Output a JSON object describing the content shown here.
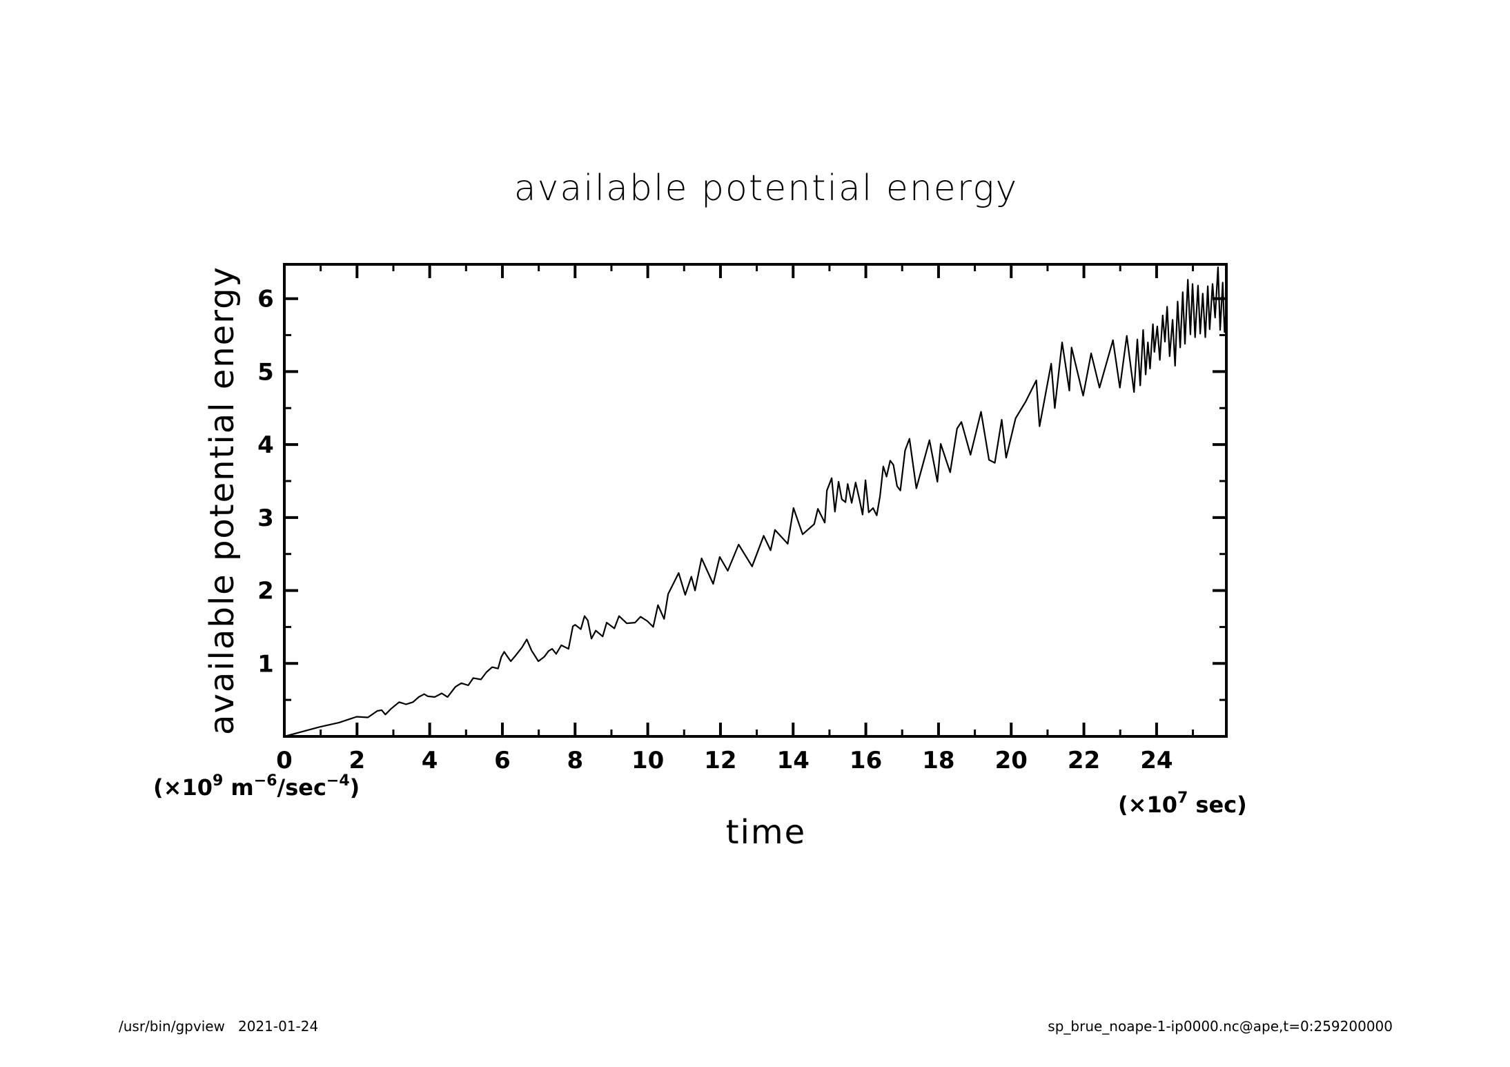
{
  "chart_data": {
    "type": "line",
    "title": "available potential energy",
    "xlabel": "time",
    "ylabel": "available potential energy",
    "x_unit_label": "(×10",
    "x_unit_exp": "7",
    "x_unit_suffix": " sec)",
    "y_unit_label": "(×10",
    "y_unit_exp": "9",
    "y_unit_suffix": " m",
    "y_unit_m_exp": "−6",
    "y_unit_sec": "/sec",
    "y_unit_sec_exp": "−4",
    "y_unit_close": ")",
    "xlim": [
      0,
      25.92
    ],
    "ylim": [
      0,
      6.47
    ],
    "xticks_major": [
      0,
      2,
      4,
      6,
      8,
      10,
      12,
      14,
      16,
      18,
      20,
      22,
      24
    ],
    "xticks_minor": [
      1,
      3,
      5,
      7,
      9,
      11,
      13,
      15,
      17,
      19,
      21,
      23,
      25
    ],
    "xtick_labels": [
      "0",
      "2",
      "4",
      "6",
      "8",
      "10",
      "12",
      "14",
      "16",
      "18",
      "20",
      "22",
      "24"
    ],
    "yticks_major": [
      1,
      2,
      3,
      4,
      5,
      6
    ],
    "yticks_minor": [
      0.5,
      1.5,
      2.5,
      3.5,
      4.5,
      5.5
    ],
    "ytick_labels": [
      "1",
      "2",
      "3",
      "4",
      "5",
      "6"
    ],
    "grid": false,
    "legend": "none",
    "series": [
      {
        "name": "available potential energy",
        "color": "#000000",
        "x": [
          0,
          0.15,
          0.97,
          1.51,
          1.99,
          2.3,
          2.56,
          2.68,
          2.78,
          2.94,
          3.16,
          3.35,
          3.54,
          3.7,
          3.85,
          3.95,
          4.14,
          4.33,
          4.49,
          4.71,
          4.87,
          5.06,
          5.2,
          5.41,
          5.56,
          5.72,
          5.88,
          5.97,
          6.05,
          6.13,
          6.23,
          6.35,
          6.54,
          6.67,
          6.8,
          6.99,
          7.15,
          7.27,
          7.37,
          7.48,
          7.62,
          7.82,
          7.94,
          8.0,
          8.16,
          8.26,
          8.35,
          8.45,
          8.57,
          8.76,
          8.87,
          9.08,
          9.21,
          9.42,
          9.65,
          9.8,
          9.99,
          10.15,
          10.28,
          10.45,
          10.56,
          10.85,
          11.03,
          11.2,
          11.3,
          11.48,
          11.8,
          11.98,
          12.2,
          12.5,
          12.87,
          13.19,
          13.38,
          13.5,
          13.85,
          14.01,
          14.26,
          14.58,
          14.68,
          14.87,
          14.93,
          15.06,
          15.15,
          15.25,
          15.34,
          15.44,
          15.5,
          15.61,
          15.72,
          15.82,
          15.91,
          15.99,
          16.08,
          16.2,
          16.3,
          16.39,
          16.48,
          16.57,
          16.67,
          16.76,
          16.86,
          16.95,
          17.08,
          17.2,
          17.39,
          17.75,
          17.97,
          18.06,
          18.32,
          18.51,
          18.63,
          18.88,
          19.17,
          19.39,
          19.55,
          19.74,
          19.86,
          20.12,
          20.4,
          20.69,
          20.78,
          21.1,
          21.2,
          21.4,
          21.6,
          21.66,
          21.98,
          22.2,
          22.43,
          22.8,
          22.99,
          23.18,
          23.38,
          23.47,
          23.55,
          23.63,
          23.7,
          23.76,
          23.82,
          23.9,
          23.94,
          24.02,
          24.09,
          24.17,
          24.23,
          24.29,
          24.36,
          24.44,
          24.51,
          24.58,
          24.65,
          24.72,
          24.78,
          24.86,
          24.93,
          24.99,
          25.06,
          25.14,
          25.2,
          25.27,
          25.34,
          25.41,
          25.46,
          25.54,
          25.61,
          25.69,
          25.75,
          25.82,
          25.87,
          25.92
        ],
        "y": [
          0,
          0.02,
          0.13,
          0.19,
          0.27,
          0.26,
          0.35,
          0.36,
          0.3,
          0.38,
          0.47,
          0.44,
          0.47,
          0.54,
          0.58,
          0.55,
          0.54,
          0.59,
          0.54,
          0.68,
          0.73,
          0.7,
          0.8,
          0.78,
          0.88,
          0.95,
          0.93,
          1.09,
          1.16,
          1.1,
          1.03,
          1.1,
          1.22,
          1.33,
          1.18,
          1.03,
          1.09,
          1.17,
          1.2,
          1.13,
          1.25,
          1.2,
          1.51,
          1.53,
          1.47,
          1.65,
          1.59,
          1.34,
          1.45,
          1.37,
          1.56,
          1.48,
          1.65,
          1.55,
          1.56,
          1.64,
          1.58,
          1.5,
          1.8,
          1.61,
          1.95,
          2.24,
          1.94,
          2.19,
          2.0,
          2.44,
          2.09,
          2.46,
          2.27,
          2.63,
          2.33,
          2.75,
          2.55,
          2.83,
          2.64,
          3.13,
          2.77,
          2.91,
          3.12,
          2.93,
          3.37,
          3.54,
          3.08,
          3.49,
          3.25,
          3.21,
          3.46,
          3.2,
          3.48,
          3.26,
          3.04,
          3.51,
          3.07,
          3.13,
          3.03,
          3.29,
          3.7,
          3.56,
          3.78,
          3.72,
          3.43,
          3.37,
          3.92,
          4.08,
          3.4,
          4.06,
          3.49,
          4.01,
          3.62,
          4.22,
          4.31,
          3.86,
          4.45,
          3.79,
          3.75,
          4.34,
          3.82,
          4.36,
          4.59,
          4.88,
          4.25,
          5.11,
          4.5,
          5.4,
          4.74,
          5.33,
          4.67,
          5.25,
          4.78,
          5.43,
          4.78,
          5.49,
          4.72,
          5.44,
          4.81,
          5.57,
          4.96,
          5.4,
          5.04,
          5.65,
          5.27,
          5.62,
          5.16,
          5.77,
          5.41,
          5.89,
          5.21,
          5.71,
          5.08,
          5.96,
          5.33,
          6.09,
          5.38,
          6.26,
          5.51,
          6.2,
          5.47,
          6.18,
          5.52,
          6.07,
          5.47,
          6.17,
          5.58,
          6.2,
          5.74,
          6.43,
          5.57,
          6.22,
          5.54,
          5.9
        ]
      }
    ]
  },
  "footer": {
    "left": "/usr/bin/gpview   2021-01-24",
    "right": "sp_brue_noape-1-ip0000.nc@ape,t=0:259200000"
  }
}
